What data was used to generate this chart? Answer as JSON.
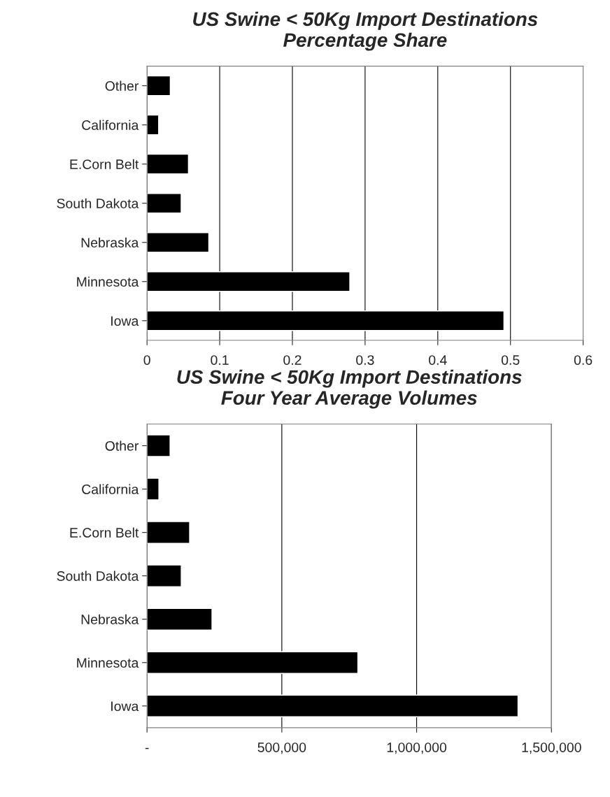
{
  "chart_data": [
    {
      "type": "bar",
      "orientation": "horizontal",
      "title": "US Swine < 50Kg Import Destinations\nPercentage Share",
      "categories": [
        "Other",
        "California",
        "E.Corn Belt",
        "South Dakota",
        "Nebraska",
        "Minnesota",
        "Iowa"
      ],
      "values": [
        0.032,
        0.016,
        0.057,
        0.047,
        0.085,
        0.279,
        0.491
      ],
      "color": "#000000",
      "xlim": [
        0,
        0.6
      ],
      "xticks": [
        0,
        0.1,
        0.2,
        0.3,
        0.4,
        0.5,
        0.6
      ],
      "grid": "x",
      "legend": false
    },
    {
      "type": "bar",
      "orientation": "horizontal",
      "title": "US Swine < 50Kg Import Destinations\nFour Year Average Volumes",
      "categories": [
        "Other",
        "California",
        "E.Corn Belt",
        "South Dakota",
        "Nebraska",
        "Minnesota",
        "Iowa"
      ],
      "values": [
        85500,
        44000,
        158000,
        127000,
        241000,
        782000,
        1376000
      ],
      "color": "#000000",
      "xlim": [
        0,
        1500000
      ],
      "xticks": [
        {
          "value": 0,
          "label": "-"
        },
        {
          "value": 500000,
          "label": "500,000"
        },
        {
          "value": 1000000,
          "label": "1,000,000"
        },
        {
          "value": 1500000,
          "label": "1,500,000"
        }
      ],
      "grid": "x",
      "legend": false
    }
  ]
}
